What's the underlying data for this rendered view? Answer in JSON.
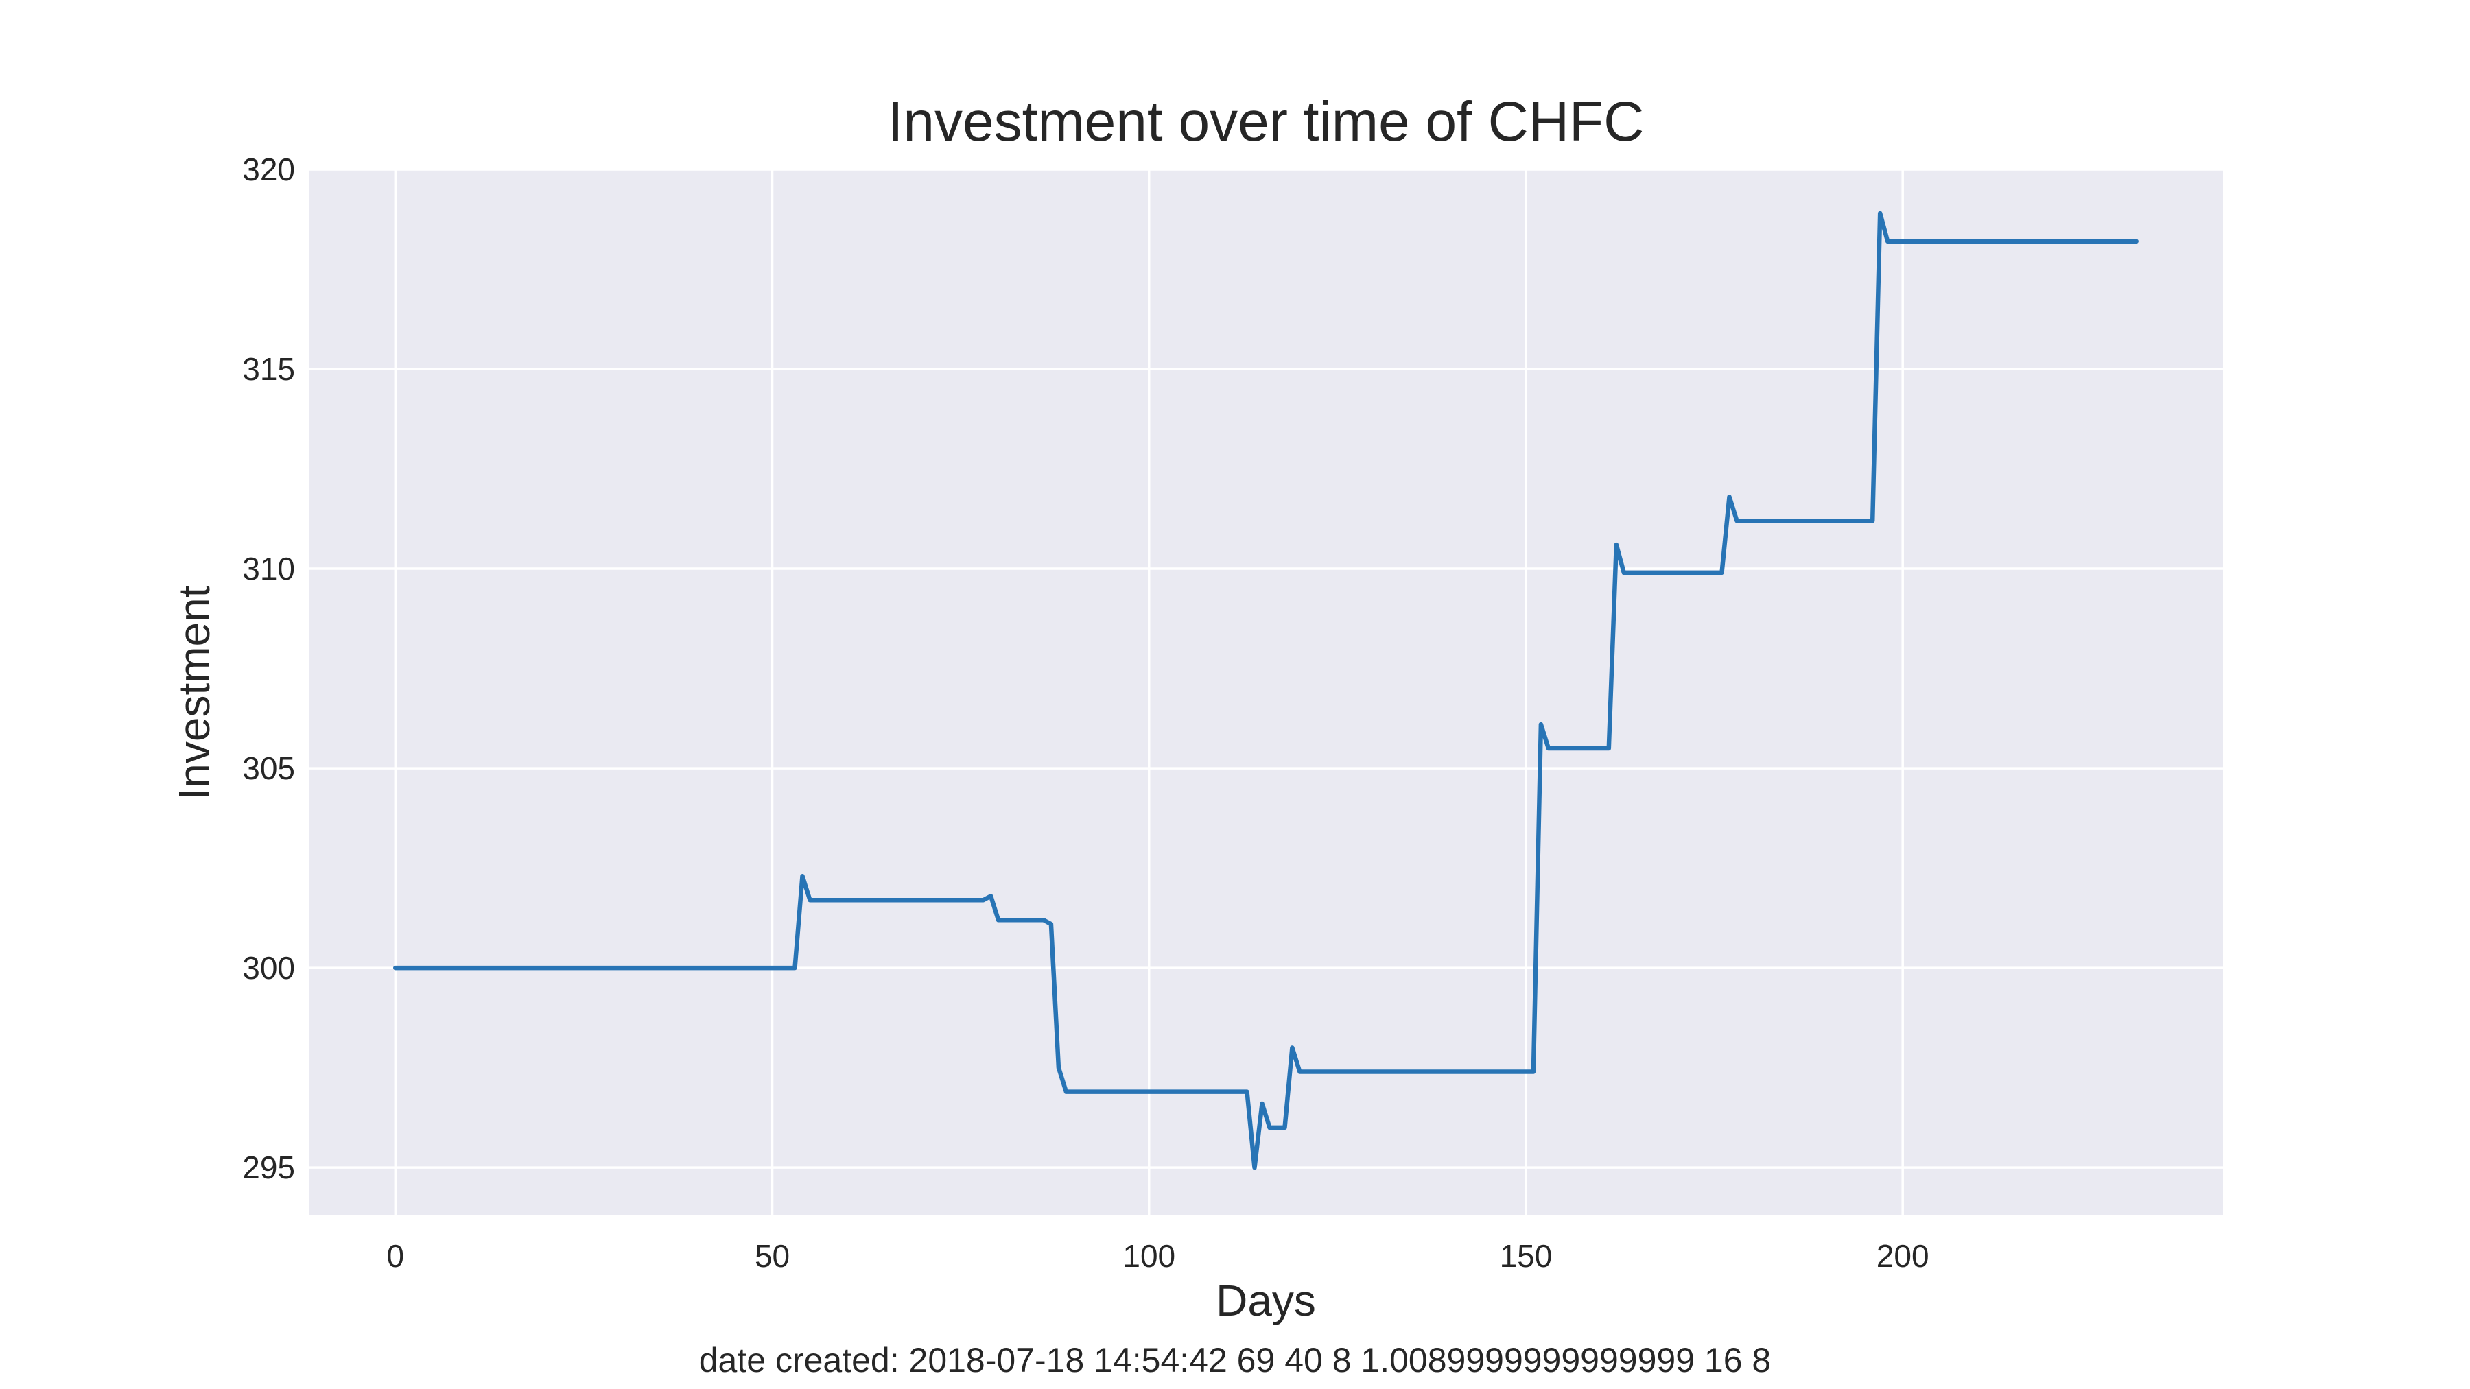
{
  "chart_data": {
    "type": "line",
    "title": "Investment over time of CHFC",
    "xlabel": "Days",
    "ylabel": "Investment",
    "footer": "date created: 2018-07-18 14:54:42 69 40 8 1.0089999999999999 16 8",
    "xlim": [
      -11.5,
      242.5
    ],
    "ylim": [
      293.8,
      320
    ],
    "xticks": [
      0,
      50,
      100,
      150,
      200
    ],
    "yticks": [
      295,
      300,
      305,
      310,
      315,
      320
    ],
    "grid": true,
    "background_color": "#eaeaf2",
    "line_color": "#2874b5",
    "series": [
      {
        "x": [
          0,
          53,
          54,
          55,
          78,
          79,
          80,
          86,
          87,
          88,
          89,
          113,
          114,
          115,
          116,
          118,
          119,
          120,
          151,
          152,
          153,
          161,
          162,
          163,
          176,
          177,
          178,
          196,
          197,
          198,
          231
        ],
        "y": [
          300.0,
          300.0,
          302.3,
          301.7,
          301.7,
          301.8,
          301.2,
          301.2,
          301.1,
          297.5,
          296.9,
          296.9,
          295.0,
          296.6,
          296.0,
          296.0,
          298.0,
          297.4,
          297.4,
          306.1,
          305.5,
          305.5,
          310.6,
          309.9,
          309.9,
          311.8,
          311.2,
          311.2,
          318.9,
          318.2,
          318.2
        ]
      }
    ]
  }
}
